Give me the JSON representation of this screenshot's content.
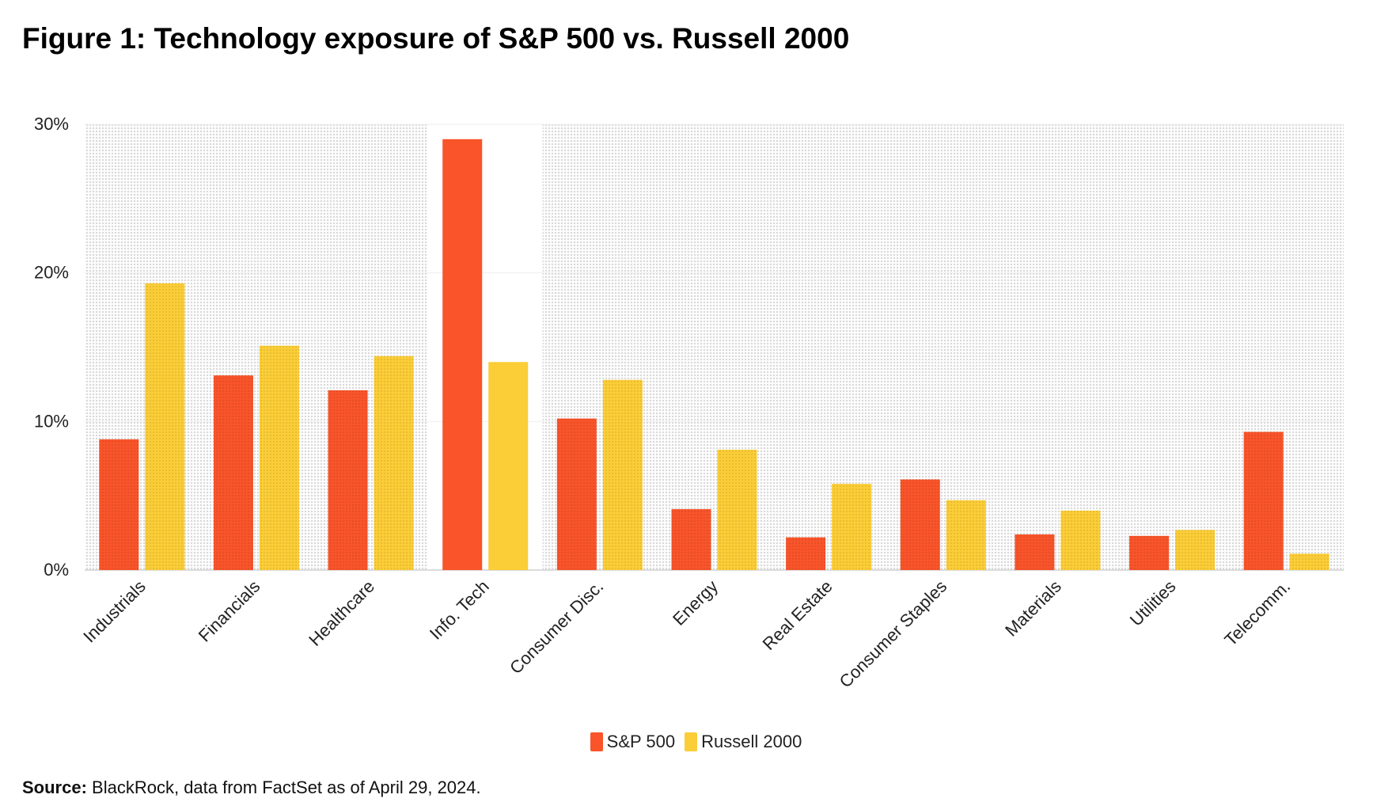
{
  "title": "Figure 1: Technology exposure of S&P 500 vs. Russell 2000",
  "source": {
    "label": "Source:",
    "text": "BlackRock, data from FactSet as of April 29, 2024."
  },
  "colors": {
    "sp500": "#F9542A",
    "russell": "#FBCD37",
    "background_pattern": "#d9d9d9",
    "highlight_band": "#ffffff"
  },
  "chart_data": {
    "type": "bar",
    "title": "Figure 1: Technology exposure of S&P 500 vs. Russell 2000",
    "xlabel": "",
    "ylabel": "",
    "ylim": [
      0,
      30
    ],
    "yticks": [
      "0%",
      "10%",
      "20%",
      "30%"
    ],
    "ytick_values": [
      0,
      10,
      20,
      30
    ],
    "grid": true,
    "legend_position": "bottom-center",
    "highlighted_category": "Info. Tech",
    "categories": [
      "Industrials",
      "Financials",
      "Healthcare",
      "Info. Tech",
      "Consumer Disc.",
      "Energy",
      "Real Estate",
      "Consumer Staples",
      "Materials",
      "Utilities",
      "Telecomm."
    ],
    "series": [
      {
        "name": "S&P 500",
        "color": "#F9542A",
        "values": [
          8.8,
          13.1,
          12.1,
          29.0,
          10.2,
          4.1,
          2.2,
          6.1,
          2.4,
          2.3,
          9.3
        ]
      },
      {
        "name": "Russell 2000",
        "color": "#FBCD37",
        "values": [
          19.3,
          15.1,
          14.4,
          14.0,
          12.8,
          8.1,
          5.8,
          4.7,
          4.0,
          2.7,
          1.1
        ]
      }
    ]
  }
}
